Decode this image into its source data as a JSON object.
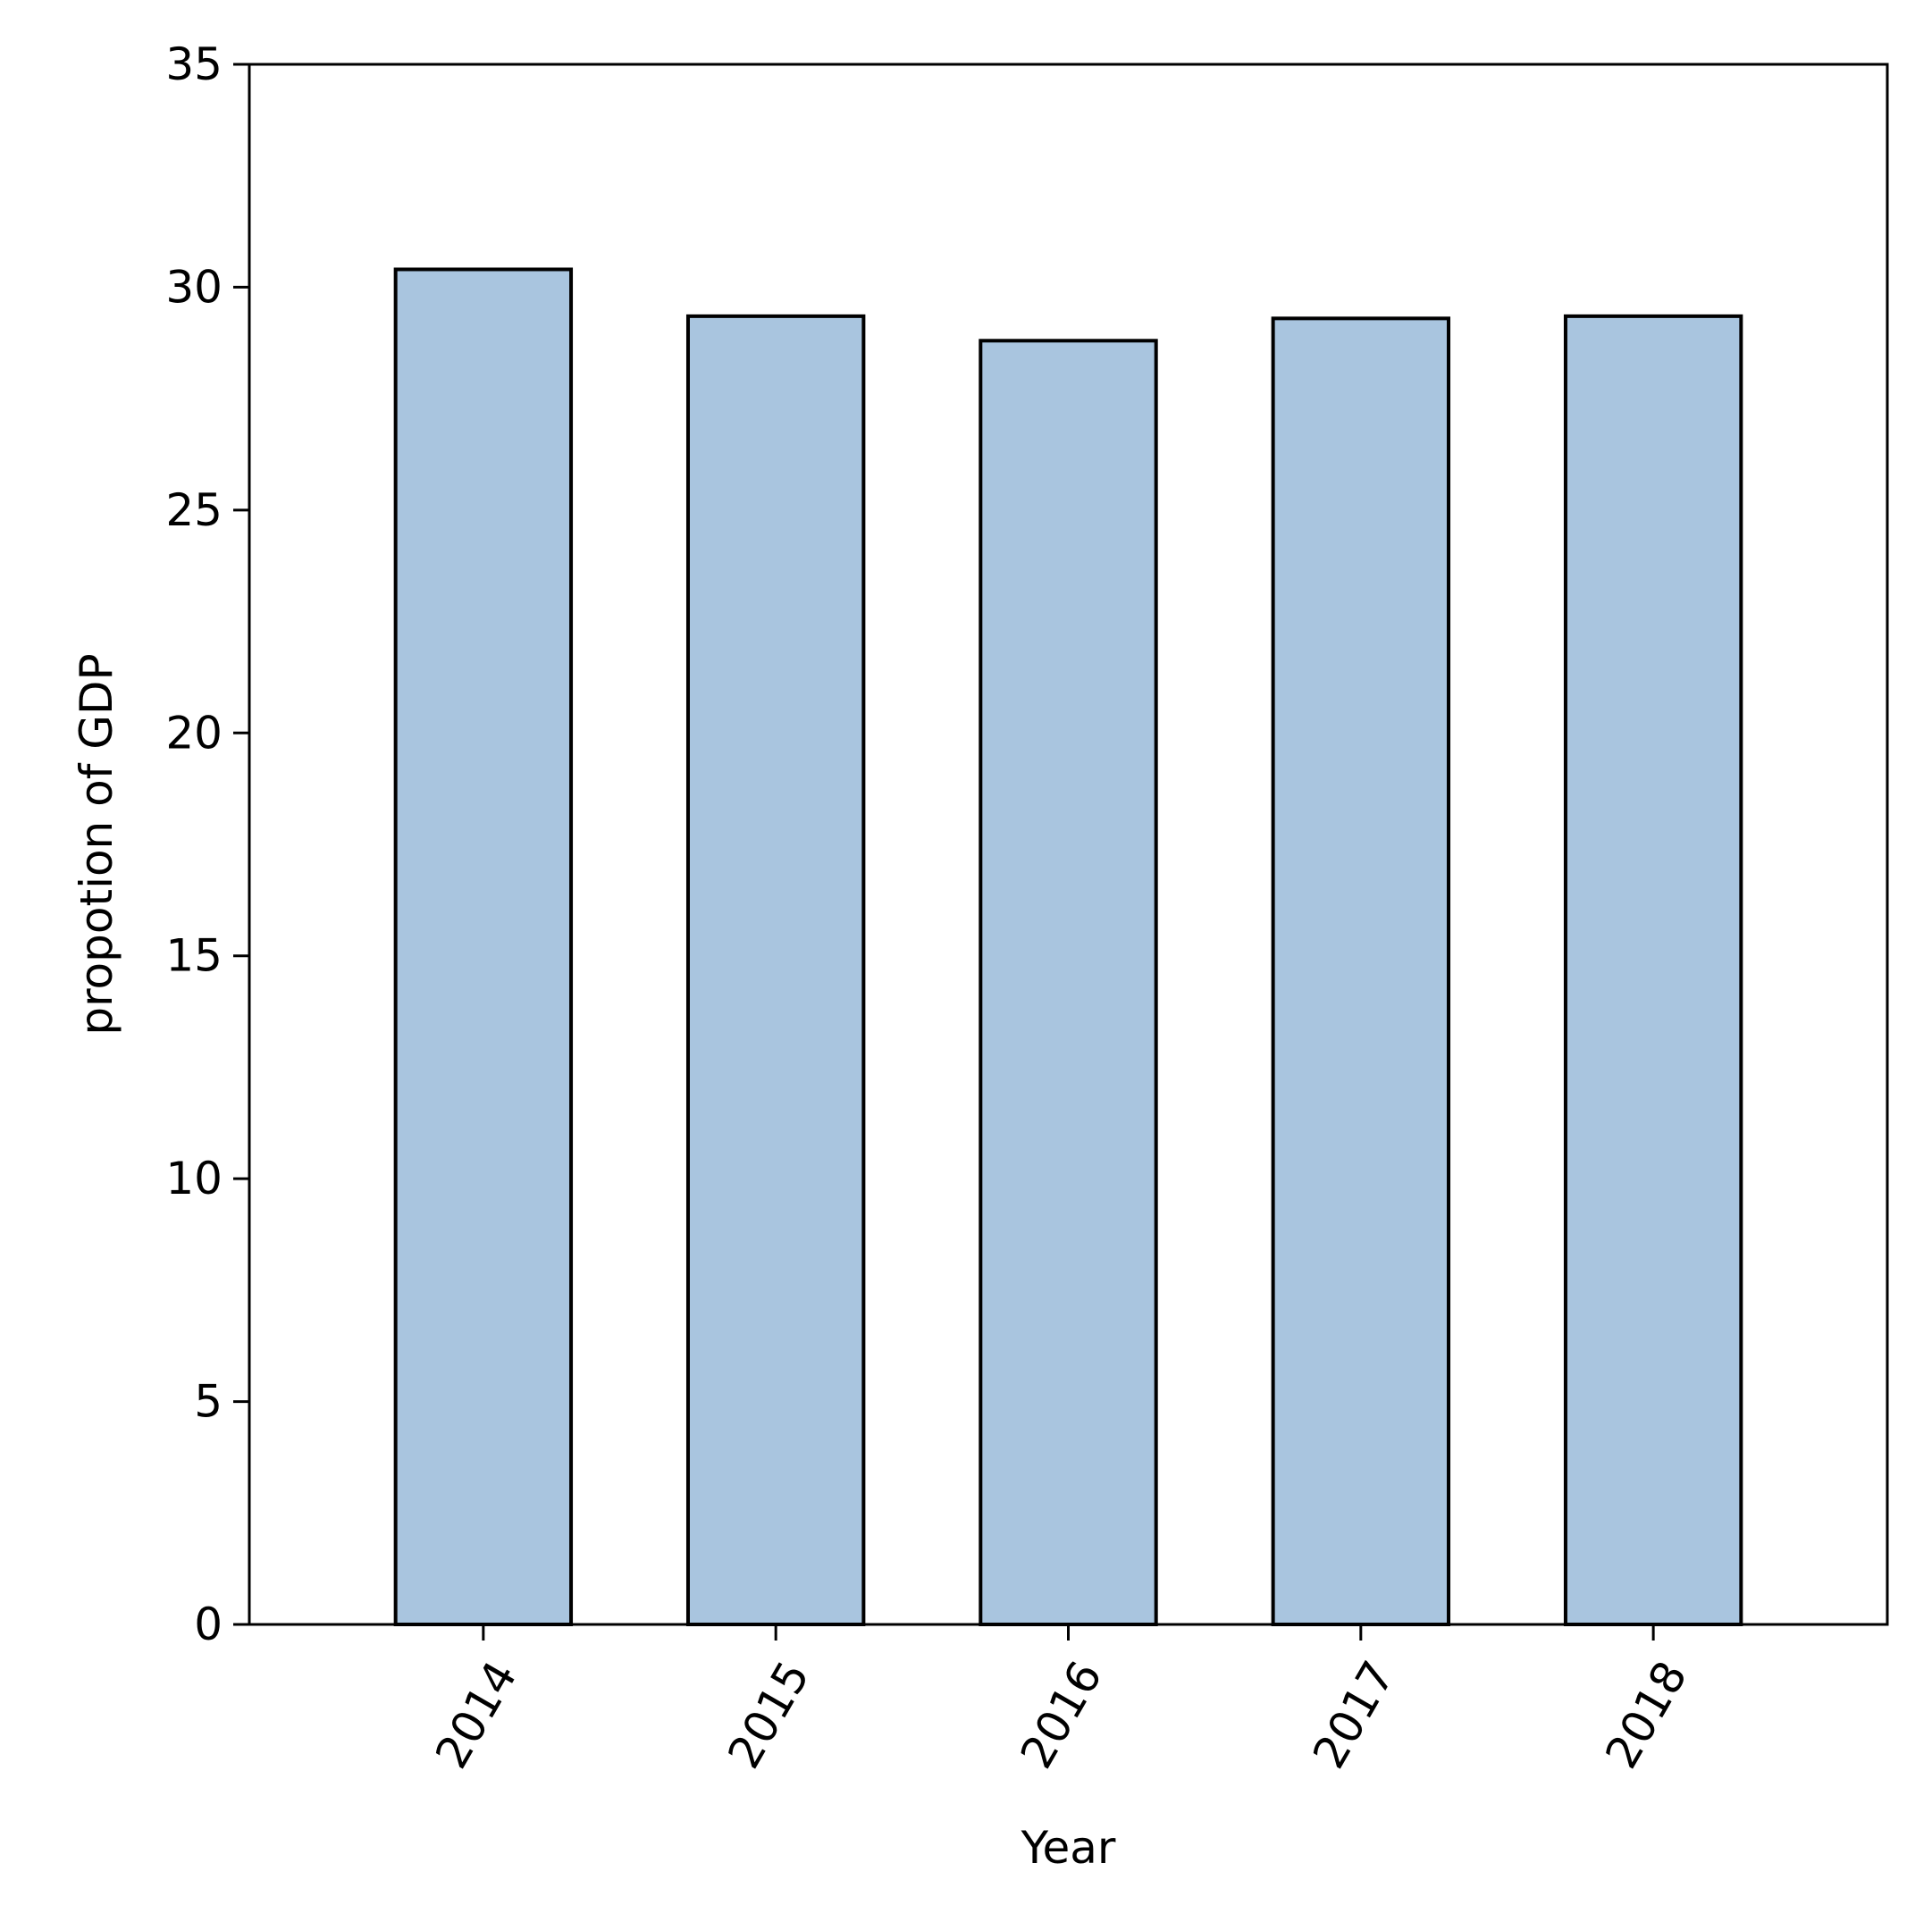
{
  "chart_data": {
    "type": "bar",
    "title": "",
    "xlabel": "Year",
    "ylabel": "propotion of GDP",
    "categories": [
      "2014",
      "2015",
      "2016",
      "2017",
      "2018"
    ],
    "values": [
      30.4,
      29.35,
      28.8,
      29.3,
      29.35
    ],
    "ylim": [
      0,
      35
    ],
    "yticks": [
      0,
      5,
      10,
      15,
      20,
      25,
      30,
      35
    ],
    "grid": false,
    "legend": "none",
    "bar_color": "#a9c5df",
    "edge_color": "#000000",
    "xtick_rotation_deg": 60
  }
}
